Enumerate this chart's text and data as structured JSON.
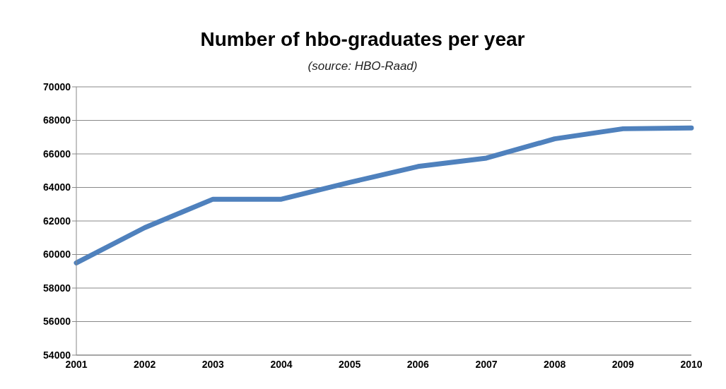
{
  "chart_data": {
    "type": "line",
    "title": "Number of hbo-graduates per year",
    "annotations": [
      "(source: HBO-Raad)"
    ],
    "categories": [
      "2001",
      "2002",
      "2003",
      "2004",
      "2005",
      "2006",
      "2007",
      "2008",
      "2009",
      "2010"
    ],
    "series": [
      {
        "color": "#4f81bd",
        "values": [
          59500,
          61600,
          63300,
          63300,
          64300,
          65250,
          65750,
          66900,
          67500,
          67550
        ]
      }
    ],
    "ylim": [
      54000,
      70000
    ],
    "yticks": [
      54000,
      56000,
      58000,
      60000,
      62000,
      64000,
      66000,
      68000,
      70000
    ],
    "grid": "y",
    "legend": false,
    "marker": "none",
    "line_style": "solid"
  }
}
